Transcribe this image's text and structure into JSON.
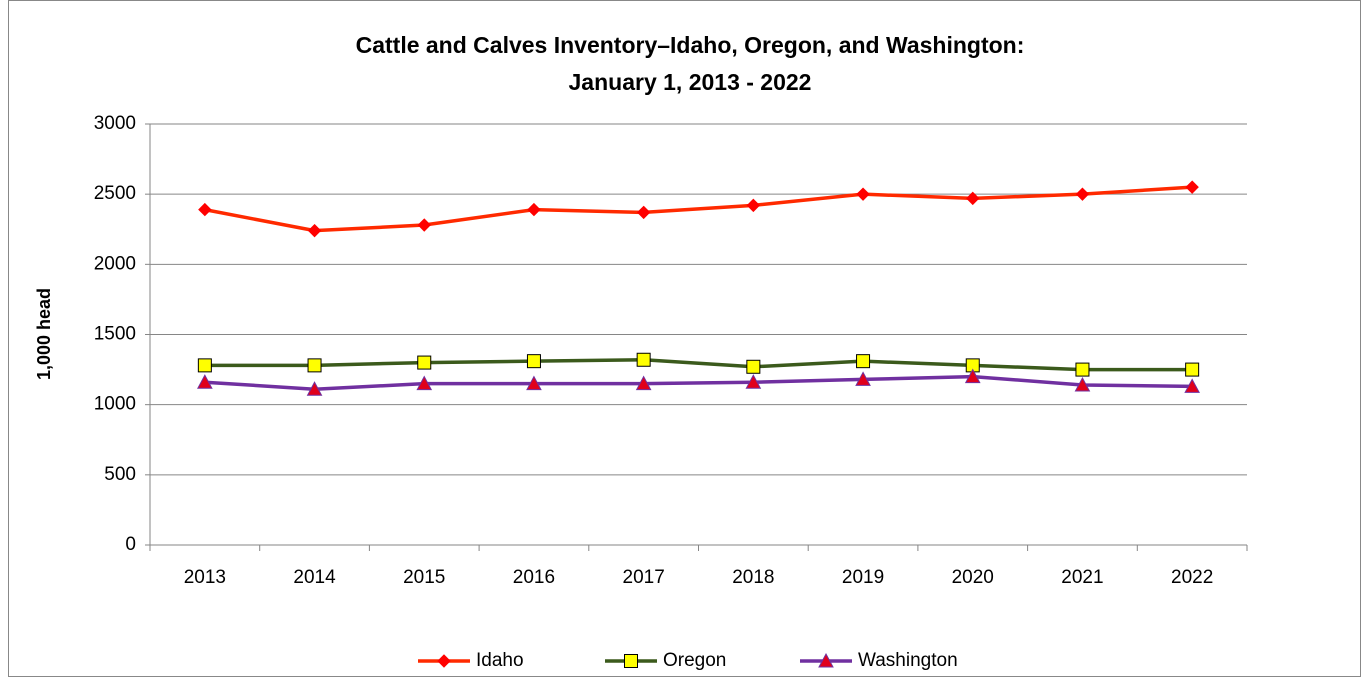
{
  "chart_data": {
    "type": "line",
    "title": [
      "Cattle and Calves Inventory–Idaho, Oregon, and Washington:",
      "January 1, 2013 - 2022"
    ],
    "y_label": "1,000 head",
    "categories": [
      "2013",
      "2014",
      "2015",
      "2016",
      "2017",
      "2018",
      "2019",
      "2020",
      "2021",
      "2022"
    ],
    "series": [
      {
        "name": "Idaho",
        "color": "#ff2a00",
        "marker": "diamond",
        "marker_color": "#ff0000",
        "values": [
          2390,
          2240,
          2280,
          2390,
          2370,
          2420,
          2500,
          2470,
          2500,
          2550
        ]
      },
      {
        "name": "Oregon",
        "color": "#3b5a1c",
        "marker": "square",
        "marker_color": "#ffff00",
        "values": [
          1280,
          1280,
          1300,
          1310,
          1320,
          1270,
          1310,
          1280,
          1250,
          1250
        ]
      },
      {
        "name": "Washington",
        "color": "#7030a0",
        "marker": "triangle",
        "marker_color": "#e0001b",
        "values": [
          1160,
          1110,
          1150,
          1150,
          1150,
          1160,
          1180,
          1200,
          1140,
          1130
        ]
      }
    ],
    "ylim": [
      0,
      3000
    ],
    "yticks": [
      0,
      500,
      1000,
      1500,
      2000,
      2500,
      3000
    ],
    "grid": true,
    "legend": "bottom"
  }
}
